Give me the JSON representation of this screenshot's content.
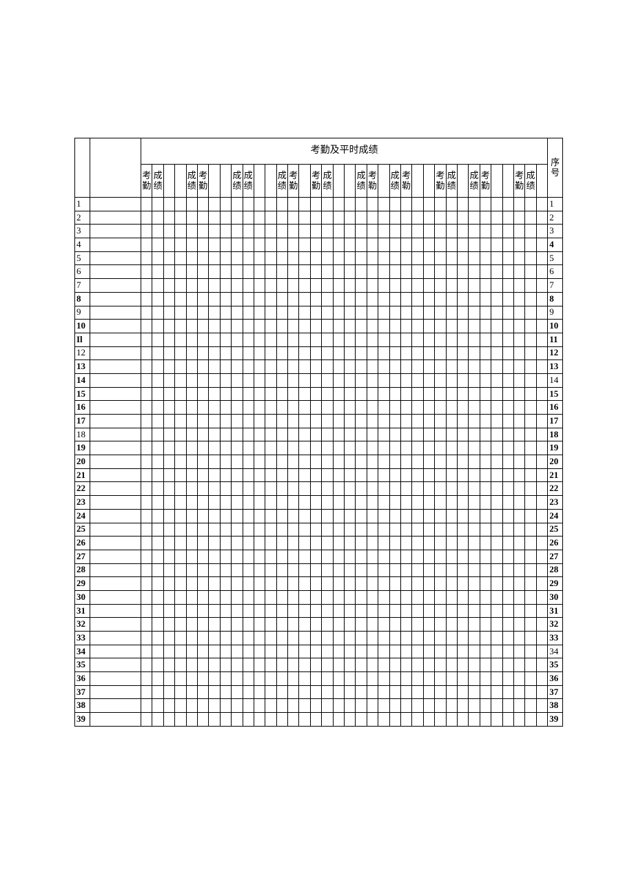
{
  "header": {
    "main_title": "考勤及平时成绩",
    "seq_label": "序号",
    "kaoqin": "考勤",
    "chengji": "成绩"
  },
  "sub_pairs": [
    {
      "a": "考勤",
      "b": "成绩"
    },
    {
      "a": "成绩",
      "b": "考勤"
    },
    {
      "a": "成绩",
      "b": "成绩"
    },
    {
      "a": "成绩",
      "b": "考勤"
    },
    {
      "a": "考勤",
      "b": "成绩"
    },
    {
      "a": "成绩",
      "b": "考勒"
    },
    {
      "a": "成绩",
      "b": "考勒"
    },
    {
      "a": "考勤",
      "b": "成绩"
    },
    {
      "a": "成绩",
      "b": "考勤"
    },
    {
      "a": "考勤",
      "b": "成绩"
    }
  ],
  "rows": [
    {
      "n": "1",
      "bL": false,
      "bR": false
    },
    {
      "n": "2",
      "bL": false,
      "bR": false
    },
    {
      "n": "3",
      "bL": false,
      "bR": false
    },
    {
      "n": "4",
      "bL": false,
      "bR": true
    },
    {
      "n": "5",
      "bL": false,
      "bR": false
    },
    {
      "n": "6",
      "bL": false,
      "bR": false
    },
    {
      "n": "7",
      "bL": false,
      "bR": false
    },
    {
      "n": "8",
      "bL": true,
      "bR": true
    },
    {
      "n": "9",
      "bL": false,
      "bR": false
    },
    {
      "n": "10",
      "bL": true,
      "bR": true
    },
    {
      "n": "11",
      "bL": true,
      "bR": true,
      "textL": "Il"
    },
    {
      "n": "12",
      "bL": false,
      "bR": true
    },
    {
      "n": "13",
      "bL": true,
      "bR": true
    },
    {
      "n": "14",
      "bL": true,
      "bR": false
    },
    {
      "n": "15",
      "bL": true,
      "bR": true
    },
    {
      "n": "16",
      "bL": true,
      "bR": true
    },
    {
      "n": "17",
      "bL": true,
      "bR": true
    },
    {
      "n": "18",
      "bL": false,
      "bR": true
    },
    {
      "n": "19",
      "bL": true,
      "bR": true
    },
    {
      "n": "20",
      "bL": true,
      "bR": true
    },
    {
      "n": "21",
      "bL": true,
      "bR": true
    },
    {
      "n": "22",
      "bL": true,
      "bR": true
    },
    {
      "n": "23",
      "bL": true,
      "bR": true
    },
    {
      "n": "24",
      "bL": true,
      "bR": true
    },
    {
      "n": "25",
      "bL": true,
      "bR": true
    },
    {
      "n": "26",
      "bL": true,
      "bR": true
    },
    {
      "n": "27",
      "bL": true,
      "bR": true
    },
    {
      "n": "28",
      "bL": true,
      "bR": true
    },
    {
      "n": "29",
      "bL": true,
      "bR": true
    },
    {
      "n": "30",
      "bL": true,
      "bR": true
    },
    {
      "n": "31",
      "bL": true,
      "bR": true
    },
    {
      "n": "32",
      "bL": true,
      "bR": true
    },
    {
      "n": "33",
      "bL": true,
      "bR": true
    },
    {
      "n": "34",
      "bL": true,
      "bR": false
    },
    {
      "n": "35",
      "bL": true,
      "bR": true
    },
    {
      "n": "36",
      "bL": true,
      "bR": true
    },
    {
      "n": "37",
      "bL": true,
      "bR": true
    },
    {
      "n": "38",
      "bL": true,
      "bR": true
    },
    {
      "n": "39",
      "bL": true,
      "bR": true
    }
  ],
  "num_data_cols": 36,
  "colors": {
    "border": "#000000",
    "background": "#ffffff",
    "text": "#000000"
  },
  "typography": {
    "body_font": "SimSun",
    "number_font": "Times New Roman",
    "header_fontsize_pt": 10.5,
    "cell_fontsize_pt": 10
  }
}
